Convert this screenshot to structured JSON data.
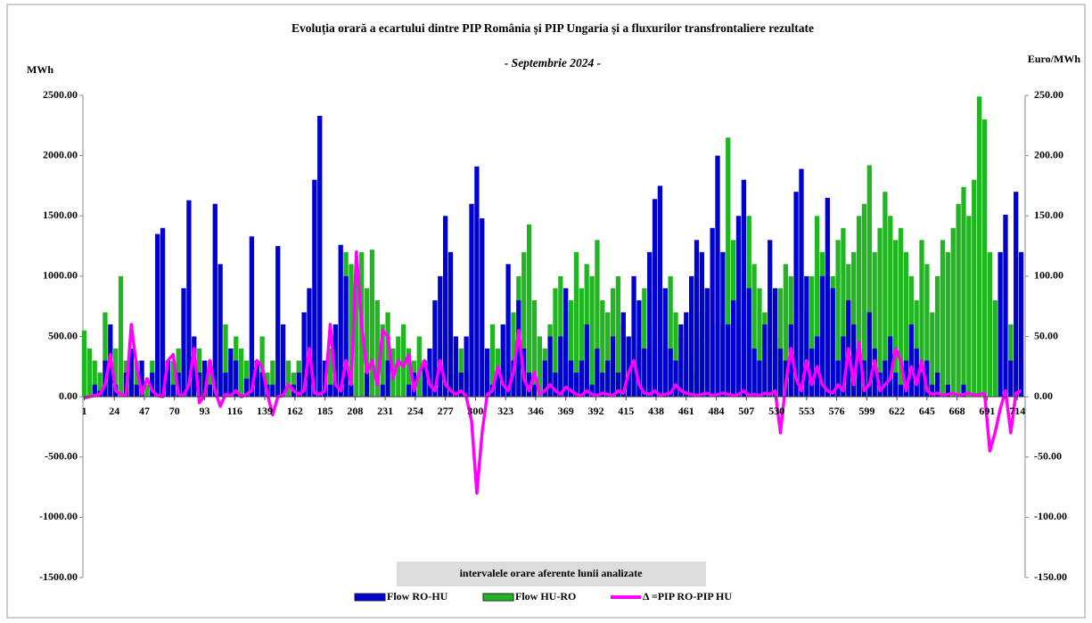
{
  "chart_data": {
    "type": "bar",
    "title": "Evoluția orară a ecartului dintre PIP România și PIP Ungaria și a fluxurilor transfrontaliere rezultate",
    "subtitle": "- Septembrie 2024 -",
    "y_label": "MWh",
    "y2_label": "Euro/MWh",
    "annotation": "intervalele orare aferente lunii analizate",
    "xlim": [
      0,
      720
    ],
    "xticks": [
      1,
      24,
      47,
      70,
      93,
      116,
      139,
      162,
      185,
      208,
      231,
      254,
      277,
      300,
      323,
      346,
      369,
      392,
      415,
      438,
      461,
      484,
      507,
      530,
      553,
      576,
      599,
      622,
      645,
      668,
      691,
      714
    ],
    "ylim": [
      -1500,
      2500
    ],
    "yticks": [
      {
        "value": -1500,
        "label": "-1500.00"
      },
      {
        "value": -1000,
        "label": "-1000.00"
      },
      {
        "value": -500,
        "label": "-500.00"
      },
      {
        "value": 0,
        "label": "0.00"
      },
      {
        "value": 500,
        "label": "500.00"
      },
      {
        "value": 1000,
        "label": "1000.00"
      },
      {
        "value": 1500,
        "label": "1500.00"
      },
      {
        "value": 2000,
        "label": "2000.00"
      },
      {
        "value": 2500,
        "label": "2500.00"
      }
    ],
    "y2lim": [
      -150,
      250
    ],
    "y2ticks": [
      {
        "value": -150,
        "label": "-150.00"
      },
      {
        "value": -100,
        "label": "-100.00"
      },
      {
        "value": -50,
        "label": "-50.00"
      },
      {
        "value": 0,
        "label": "0.00"
      },
      {
        "value": 50,
        "label": "50.00"
      },
      {
        "value": 100,
        "label": "100.00"
      },
      {
        "value": 150,
        "label": "150.00"
      },
      {
        "value": 200,
        "label": "200.00"
      },
      {
        "value": 250,
        "label": "250.00"
      }
    ],
    "grid": false,
    "legend": "bottom",
    "x": [
      1,
      5,
      9,
      13,
      17,
      21,
      25,
      29,
      33,
      37,
      41,
      45,
      49,
      53,
      57,
      61,
      65,
      69,
      73,
      77,
      81,
      85,
      89,
      93,
      97,
      101,
      105,
      109,
      113,
      117,
      121,
      125,
      129,
      133,
      137,
      141,
      145,
      149,
      153,
      157,
      161,
      165,
      169,
      173,
      177,
      181,
      185,
      189,
      193,
      197,
      201,
      205,
      209,
      213,
      217,
      221,
      225,
      229,
      233,
      237,
      241,
      245,
      249,
      253,
      257,
      261,
      265,
      269,
      273,
      277,
      281,
      285,
      289,
      293,
      297,
      301,
      305,
      309,
      313,
      317,
      321,
      325,
      329,
      333,
      337,
      341,
      345,
      349,
      353,
      357,
      361,
      365,
      369,
      373,
      377,
      381,
      385,
      389,
      393,
      397,
      401,
      405,
      409,
      413,
      417,
      421,
      425,
      429,
      433,
      437,
      441,
      445,
      449,
      453,
      457,
      461,
      465,
      469,
      473,
      477,
      481,
      485,
      489,
      493,
      497,
      501,
      505,
      509,
      513,
      517,
      521,
      525,
      529,
      533,
      537,
      541,
      545,
      549,
      553,
      557,
      561,
      565,
      569,
      573,
      577,
      581,
      585,
      589,
      593,
      597,
      601,
      605,
      609,
      613,
      617,
      621,
      625,
      629,
      633,
      637,
      641,
      645,
      649,
      653,
      657,
      661,
      665,
      669,
      673,
      677,
      681,
      685,
      689,
      693,
      697,
      701,
      705,
      709,
      713,
      717
    ],
    "series": [
      {
        "name": "Flow HU-RO",
        "color": "#22b522",
        "type": "bar",
        "axis": "y",
        "values": [
          550,
          400,
          300,
          200,
          700,
          500,
          400,
          1000,
          300,
          200,
          300,
          200,
          100,
          300,
          0,
          0,
          200,
          300,
          400,
          100,
          0,
          300,
          400,
          200,
          300,
          0,
          200,
          600,
          300,
          500,
          400,
          300,
          0,
          200,
          500,
          200,
          300,
          0,
          100,
          300,
          200,
          300,
          100,
          0,
          0,
          0,
          200,
          400,
          300,
          0,
          1200,
          1100,
          1000,
          1200,
          900,
          1220,
          800,
          600,
          700,
          400,
          500,
          600,
          400,
          300,
          500,
          300,
          200,
          0,
          0,
          0,
          0,
          200,
          400,
          200,
          0,
          0,
          0,
          300,
          600,
          400,
          300,
          200,
          700,
          1000,
          1200,
          1430,
          800,
          500,
          400,
          600,
          900,
          1000,
          700,
          800,
          1200,
          900,
          1100,
          1000,
          1300,
          800,
          700,
          900,
          1000,
          600,
          500,
          300,
          400,
          900,
          600,
          0,
          0,
          400,
          1000,
          700,
          500,
          300,
          200,
          500,
          700,
          900,
          600,
          0,
          600,
          2150,
          1300,
          0,
          0,
          1500,
          1100,
          900,
          700,
          0,
          500,
          900,
          1100,
          1000,
          0,
          0,
          700,
          1000,
          1500,
          1200,
          0,
          1000,
          1300,
          1400,
          1100,
          1200,
          1500,
          1600,
          1920,
          1200,
          1400,
          1700,
          1500,
          1300,
          1400,
          1200,
          1000,
          800,
          1300,
          1100,
          700,
          1000,
          1300,
          1200,
          1400,
          1600,
          1740,
          1500,
          1800,
          2490,
          2300,
          1200,
          800,
          0,
          0,
          600,
          0,
          300
        ]
      },
      {
        "name": "Flow RO-HU",
        "color": "#0000d0",
        "type": "bar",
        "axis": "y",
        "values": [
          0,
          0,
          100,
          50,
          300,
          600,
          100,
          0,
          200,
          400,
          100,
          300,
          0,
          200,
          1350,
          1400,
          300,
          100,
          200,
          900,
          1630,
          500,
          200,
          300,
          100,
          1600,
          1100,
          200,
          400,
          300,
          0,
          150,
          1330,
          300,
          200,
          100,
          100,
          1250,
          600,
          0,
          100,
          200,
          700,
          900,
          1800,
          2330,
          300,
          100,
          600,
          1260,
          1000,
          100,
          0,
          0,
          200,
          0,
          0,
          100,
          300,
          0,
          0,
          0,
          100,
          200,
          0,
          300,
          400,
          800,
          1000,
          1500,
          1200,
          500,
          200,
          500,
          1600,
          1910,
          1480,
          400,
          100,
          200,
          600,
          1100,
          300,
          800,
          400,
          200,
          100,
          0,
          300,
          500,
          200,
          500,
          900,
          300,
          200,
          300,
          600,
          100,
          400,
          200,
          300,
          500,
          200,
          700,
          500,
          1000,
          800,
          400,
          1200,
          1640,
          1750,
          900,
          400,
          300,
          600,
          700,
          1000,
          1300,
          1200,
          900,
          1400,
          2000,
          1200,
          600,
          800,
          1500,
          1800,
          900,
          400,
          300,
          600,
          1300,
          900,
          400,
          300,
          600,
          1700,
          1890,
          1000,
          400,
          500,
          1000,
          1650,
          900,
          300,
          500,
          800,
          600,
          400,
          300,
          700,
          400,
          200,
          300,
          500,
          200,
          100,
          300,
          600,
          400,
          200,
          300,
          100,
          200,
          0,
          100,
          0,
          0,
          100,
          0,
          0,
          0,
          0,
          0,
          0,
          1200,
          1510,
          300,
          1700,
          1200
        ]
      },
      {
        "name": "Δ =PIP RO-PIP HU",
        "color": "#ff00ff",
        "type": "line",
        "axis": "y2",
        "values": [
          -1,
          0,
          1,
          2,
          10,
          35,
          5,
          2,
          1,
          60,
          25,
          2,
          15,
          5,
          1,
          0,
          30,
          35,
          2,
          1,
          10,
          40,
          -5,
          1,
          30,
          5,
          -8,
          2,
          1,
          5,
          0,
          2,
          5,
          30,
          25,
          2,
          -15,
          0,
          1,
          10,
          5,
          2,
          5,
          40,
          3,
          2,
          5,
          60,
          10,
          5,
          30,
          10,
          120,
          60,
          20,
          30,
          10,
          55,
          50,
          15,
          30,
          25,
          35,
          5,
          20,
          30,
          10,
          5,
          30,
          10,
          5,
          2,
          5,
          0,
          -20,
          -80,
          -30,
          2,
          5,
          25,
          10,
          5,
          20,
          55,
          15,
          5,
          20,
          2,
          5,
          10,
          5,
          2,
          8,
          5,
          2,
          1,
          5,
          2,
          1,
          3,
          2,
          1,
          5,
          3,
          20,
          30,
          10,
          3,
          2,
          5,
          1,
          2,
          3,
          10,
          5,
          3,
          2,
          1,
          2,
          3,
          1,
          2,
          3,
          2,
          1,
          2,
          5,
          1,
          2,
          1,
          3,
          2,
          5,
          -30,
          10,
          40,
          15,
          5,
          30,
          10,
          25,
          10,
          5,
          3,
          10,
          5,
          40,
          10,
          45,
          5,
          10,
          30,
          5,
          10,
          15,
          40,
          30,
          5,
          25,
          10,
          30,
          5,
          2,
          3,
          1,
          2,
          3,
          1,
          2,
          3,
          1,
          2,
          3,
          -45,
          -30,
          -10,
          5,
          -30,
          3,
          5
        ]
      }
    ]
  }
}
